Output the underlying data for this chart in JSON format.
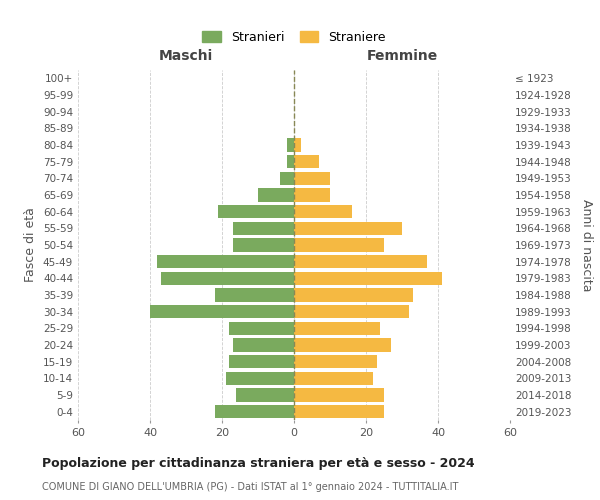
{
  "age_groups": [
    "100+",
    "95-99",
    "90-94",
    "85-89",
    "80-84",
    "75-79",
    "70-74",
    "65-69",
    "60-64",
    "55-59",
    "50-54",
    "45-49",
    "40-44",
    "35-39",
    "30-34",
    "25-29",
    "20-24",
    "15-19",
    "10-14",
    "5-9",
    "0-4"
  ],
  "birth_years": [
    "≤ 1923",
    "1924-1928",
    "1929-1933",
    "1934-1938",
    "1939-1943",
    "1944-1948",
    "1949-1953",
    "1954-1958",
    "1959-1963",
    "1964-1968",
    "1969-1973",
    "1974-1978",
    "1979-1983",
    "1984-1988",
    "1989-1993",
    "1994-1998",
    "1999-2003",
    "2004-2008",
    "2009-2013",
    "2014-2018",
    "2019-2023"
  ],
  "maschi": [
    0,
    0,
    0,
    0,
    2,
    2,
    4,
    10,
    21,
    17,
    17,
    38,
    37,
    22,
    40,
    18,
    17,
    18,
    19,
    16,
    22
  ],
  "femmine": [
    0,
    0,
    0,
    0,
    2,
    7,
    10,
    10,
    16,
    30,
    25,
    37,
    41,
    33,
    32,
    24,
    27,
    23,
    22,
    25,
    25
  ],
  "male_color": "#7aaa5e",
  "female_color": "#f5b942",
  "background_color": "#ffffff",
  "grid_color": "#cccccc",
  "title": "Popolazione per cittadinanza straniera per età e sesso - 2024",
  "subtitle": "COMUNE DI GIANO DELL'UMBRIA (PG) - Dati ISTAT al 1° gennaio 2024 - TUTTITALIA.IT",
  "ylabel_left": "Fasce di età",
  "ylabel_right": "Anni di nascita",
  "legend_male": "Stranieri",
  "legend_female": "Straniere",
  "xlim": 60,
  "bar_height": 0.8
}
